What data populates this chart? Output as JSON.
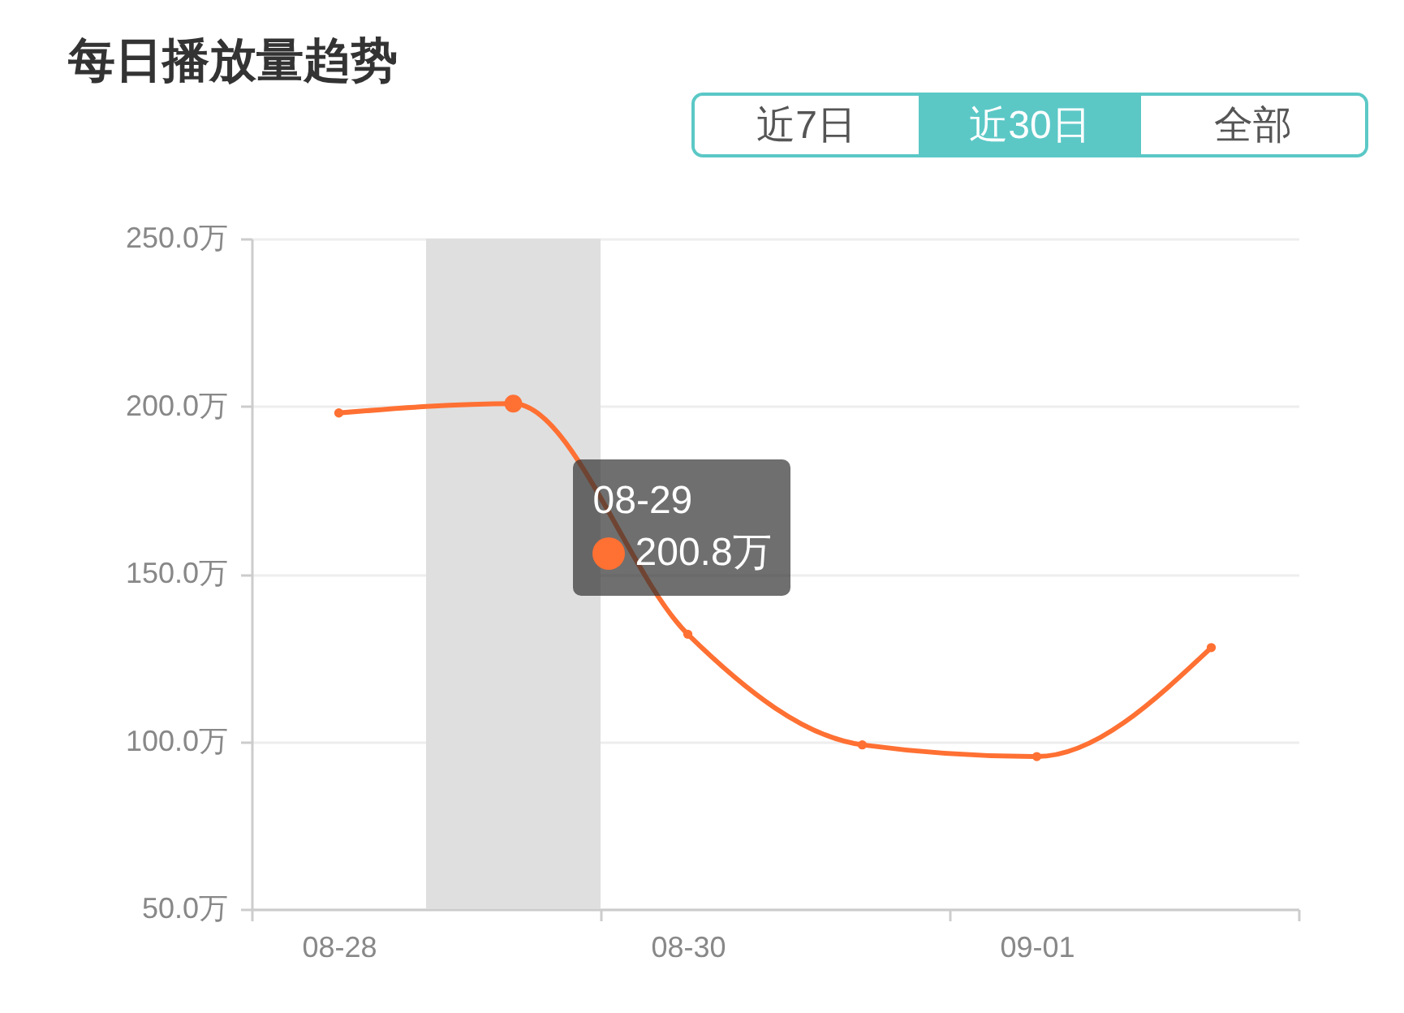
{
  "chart_data": {
    "type": "line",
    "title": "每日播放量趋势",
    "x": [
      "--08-28",
      "--08-29",
      "--08-30",
      "--08-31",
      "--09-01",
      "--09-02"
    ],
    "values": [
      198,
      200.8,
      132,
      99,
      95.5,
      128
    ],
    "color": "#ff7033",
    "xlim": [
      "--08-27T12:00",
      "--09-02T12:00"
    ],
    "xticks": [
      {
        "value": "--08-27T12:00",
        "label": null
      },
      {
        "value": "--08-28",
        "label": "08-28"
      },
      {
        "value": "--08-29T12:00",
        "label": null
      },
      {
        "value": "--08-30",
        "label": "08-30"
      },
      {
        "value": "--08-31T12:00",
        "label": null
      },
      {
        "value": "--09-01",
        "label": "09-01"
      },
      {
        "value": "--09-02T12:00",
        "label": null
      }
    ],
    "ylim": [
      50,
      250
    ],
    "yticks": [
      {
        "value": 50,
        "label": "50.0万"
      },
      {
        "value": 100,
        "label": "100.0万"
      },
      {
        "value": 150,
        "label": "150.0万"
      },
      {
        "value": 200,
        "label": "200.0万"
      },
      {
        "value": 250,
        "label": "250.0万"
      }
    ],
    "grid": "y",
    "marker": "circle",
    "line_style": "solid",
    "bands": [
      {
        "axis": "x",
        "from": "--08-28T12:00",
        "to": "--08-29T12:00",
        "color": "#dfdfdf"
      }
    ],
    "annotations": [
      "近7日",
      "近30日",
      "全部",
      "08-29",
      "200.8万"
    ]
  }
}
